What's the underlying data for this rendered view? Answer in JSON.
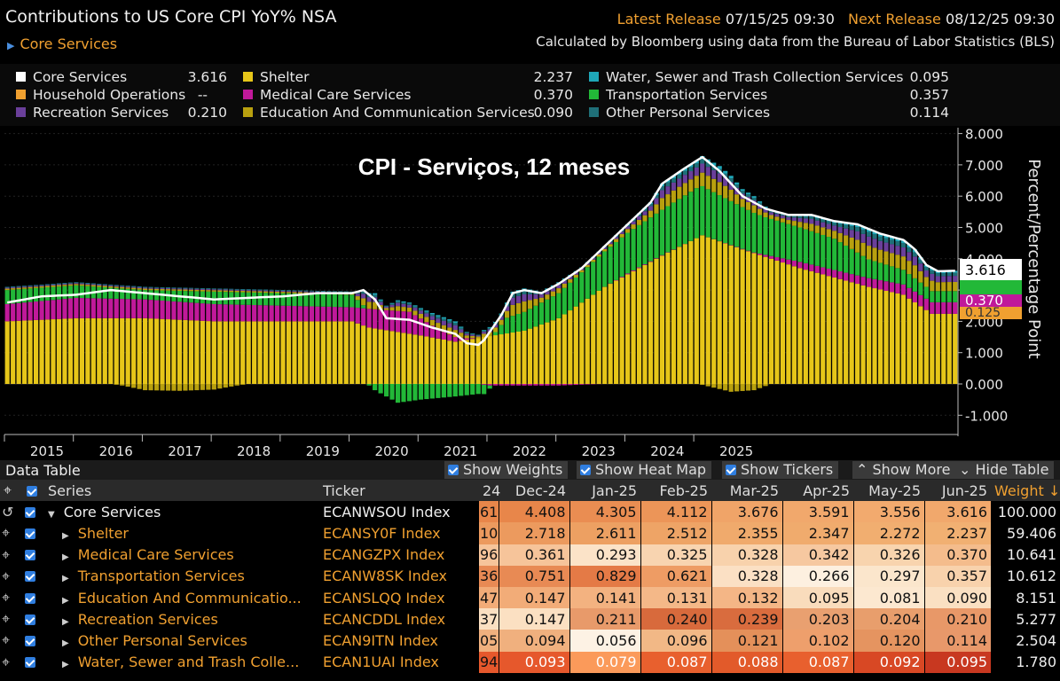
{
  "header": {
    "title": "Contributions to US Core CPI YoY% NSA",
    "subtitle": "Core Services",
    "latest_label": "Latest Release",
    "latest_value": "07/15/25 09:30",
    "next_label": "Next Release",
    "next_value": "08/12/25 09:30",
    "note": "Calculated by Bloomberg using data from the Bureau of Labor Statistics (BLS)"
  },
  "legend": [
    {
      "label": "Core Services",
      "value": "3.616",
      "color": "#ffffff"
    },
    {
      "label": "Household Operations",
      "value": "--",
      "color": "#f0a030"
    },
    {
      "label": "Recreation Services",
      "value": "0.210",
      "color": "#6a3f9a"
    },
    {
      "label": "Shelter",
      "value": "2.237",
      "color": "#e6c619"
    },
    {
      "label": "Medical Care Services",
      "value": "0.370",
      "color": "#c0199a"
    },
    {
      "label": "Education And Communication Services",
      "value": "0.090",
      "color": "#b8a00f"
    },
    {
      "label": "Water, Sewer and Trash Collection Services",
      "value": "0.095",
      "color": "#1fa7b8"
    },
    {
      "label": "Transportation Services",
      "value": "0.357",
      "color": "#22b838"
    },
    {
      "label": "Other Personal Services",
      "value": "0.114",
      "color": "#1f6f78"
    }
  ],
  "chart_data": {
    "type": "bar",
    "title": "CPI - Serviços, 12 meses",
    "ylabel": "Percent/Percentage Point",
    "ylim": [
      -1.0,
      8.0
    ],
    "yticks": [
      "8.000",
      "7.000",
      "6.000",
      "5.000",
      "4.000",
      "3.000",
      "2.000",
      "1.000",
      "0.000",
      "-1.000"
    ],
    "xticks": [
      "2015",
      "2016",
      "2017",
      "2018",
      "2019",
      "2020",
      "2021",
      "2022",
      "2023",
      "2024",
      "2025"
    ],
    "x_start": "2015-01",
    "annotations": [
      {
        "value": "3.616",
        "color": "#ffffff"
      },
      {
        "value": "0.370",
        "color": "#c0199a"
      },
      {
        "value": "0.125",
        "color": "#f0a030"
      }
    ],
    "anchors": {
      "shelter": [
        [
          0,
          2.0
        ],
        [
          12,
          2.1
        ],
        [
          24,
          2.1
        ],
        [
          36,
          2.0
        ],
        [
          48,
          2.0
        ],
        [
          60,
          2.0
        ],
        [
          63,
          1.8
        ],
        [
          72,
          1.55
        ],
        [
          78,
          1.35
        ],
        [
          83,
          1.5
        ],
        [
          90,
          1.7
        ],
        [
          96,
          2.1
        ],
        [
          104,
          3.1
        ],
        [
          114,
          4.1
        ],
        [
          121,
          4.75
        ],
        [
          128,
          4.3
        ],
        [
          138,
          3.7
        ],
        [
          150,
          3.1
        ],
        [
          156,
          2.85
        ],
        [
          161,
          2.24
        ],
        [
          165,
          2.24
        ]
      ],
      "medical": [
        [
          0,
          0.55
        ],
        [
          12,
          0.65
        ],
        [
          24,
          0.6
        ],
        [
          36,
          0.55
        ],
        [
          48,
          0.5
        ],
        [
          60,
          0.45
        ],
        [
          63,
          0.6
        ],
        [
          70,
          0.7
        ],
        [
          75,
          0.3
        ],
        [
          80,
          0.05
        ],
        [
          84,
          -0.05
        ],
        [
          96,
          -0.05
        ],
        [
          108,
          0.03
        ],
        [
          120,
          0.0
        ],
        [
          130,
          0.02
        ],
        [
          138,
          0.2
        ],
        [
          150,
          0.28
        ],
        [
          161,
          0.37
        ],
        [
          165,
          0.37
        ]
      ],
      "transport": [
        [
          0,
          0.45
        ],
        [
          12,
          0.4
        ],
        [
          24,
          0.3
        ],
        [
          36,
          0.4
        ],
        [
          48,
          0.4
        ],
        [
          60,
          0.4
        ],
        [
          64,
          -0.2
        ],
        [
          68,
          -0.6
        ],
        [
          72,
          -0.5
        ],
        [
          78,
          -0.4
        ],
        [
          83,
          -0.3
        ],
        [
          87,
          0.5
        ],
        [
          96,
          0.8
        ],
        [
          108,
          1.3
        ],
        [
          120,
          1.6
        ],
        [
          126,
          1.4
        ],
        [
          132,
          1.2
        ],
        [
          144,
          1.0
        ],
        [
          150,
          0.6
        ],
        [
          161,
          0.357
        ],
        [
          165,
          0.357
        ]
      ],
      "other": [
        [
          0,
          0.22
        ],
        [
          36,
          0.2
        ],
        [
          60,
          0.2
        ],
        [
          72,
          0.18
        ],
        [
          84,
          0.2
        ],
        [
          108,
          0.28
        ],
        [
          120,
          0.33
        ],
        [
          144,
          0.3
        ],
        [
          165,
          0.26
        ]
      ],
      "neg": [
        [
          0,
          0
        ],
        [
          18,
          0
        ],
        [
          20,
          -0.05
        ],
        [
          24,
          -0.2
        ],
        [
          30,
          -0.22
        ],
        [
          36,
          -0.18
        ],
        [
          40,
          -0.05
        ],
        [
          42,
          0
        ],
        [
          120,
          0
        ],
        [
          121,
          -0.03
        ],
        [
          126,
          -0.25
        ],
        [
          130,
          -0.2
        ],
        [
          133,
          0
        ],
        [
          165,
          0
        ]
      ],
      "total": [
        [
          0,
          2.6
        ],
        [
          6,
          2.8
        ],
        [
          12,
          2.85
        ],
        [
          18,
          3.0
        ],
        [
          24,
          2.9
        ],
        [
          30,
          2.8
        ],
        [
          36,
          2.7
        ],
        [
          42,
          2.75
        ],
        [
          48,
          2.8
        ],
        [
          54,
          2.9
        ],
        [
          60,
          2.9
        ],
        [
          62,
          3.0
        ],
        [
          64,
          2.7
        ],
        [
          66,
          2.1
        ],
        [
          70,
          2.05
        ],
        [
          74,
          1.8
        ],
        [
          78,
          1.6
        ],
        [
          80,
          1.3
        ],
        [
          82,
          1.25
        ],
        [
          83,
          1.4
        ],
        [
          86,
          2.2
        ],
        [
          88,
          2.9
        ],
        [
          90,
          3.0
        ],
        [
          93,
          2.9
        ],
        [
          96,
          3.2
        ],
        [
          100,
          3.7
        ],
        [
          104,
          4.4
        ],
        [
          108,
          5.1
        ],
        [
          112,
          5.8
        ],
        [
          114,
          6.4
        ],
        [
          118,
          6.9
        ],
        [
          121,
          7.25
        ],
        [
          124,
          6.8
        ],
        [
          128,
          6.0
        ],
        [
          132,
          5.6
        ],
        [
          136,
          5.4
        ],
        [
          140,
          5.4
        ],
        [
          144,
          5.2
        ],
        [
          148,
          5.1
        ],
        [
          152,
          4.8
        ],
        [
          156,
          4.6
        ],
        [
          158,
          4.3
        ],
        [
          160,
          3.8
        ],
        [
          162,
          3.6
        ],
        [
          165,
          3.616
        ]
      ]
    }
  },
  "data_table": {
    "title": "Data Table",
    "buttons": [
      "Show Weights",
      "Show Heat Map",
      "Show Tickers",
      "Show More",
      "Hide Table"
    ],
    "columns": [
      "Series",
      "Ticker",
      "24",
      "Dec-24",
      "Jan-25",
      "Feb-25",
      "Mar-25",
      "Apr-25",
      "May-25",
      "Jun-25",
      "Weight"
    ],
    "rows": [
      {
        "name": "Core Services",
        "ticker": "ECANWSOU Index",
        "p": "61",
        "v": [
          "4.408",
          "4.305",
          "4.112",
          "3.676",
          "3.591",
          "3.556",
          "3.616"
        ],
        "w": "100.000"
      },
      {
        "name": "Shelter",
        "ticker": "ECANSY0F Index",
        "p": "10",
        "v": [
          "2.718",
          "2.611",
          "2.512",
          "2.355",
          "2.347",
          "2.272",
          "2.237"
        ],
        "w": "59.406"
      },
      {
        "name": "Medical Care Services",
        "ticker": "ECANGZPX Index",
        "p": "96",
        "v": [
          "0.361",
          "0.293",
          "0.325",
          "0.328",
          "0.342",
          "0.326",
          "0.370"
        ],
        "w": "10.641"
      },
      {
        "name": "Transportation Services",
        "ticker": "ECANW8SK Index",
        "p": "36",
        "v": [
          "0.751",
          "0.829",
          "0.621",
          "0.328",
          "0.266",
          "0.297",
          "0.357"
        ],
        "w": "10.612"
      },
      {
        "name": "Education And Communicatio...",
        "ticker": "ECANSLQQ Index",
        "p": "47",
        "v": [
          "0.147",
          "0.141",
          "0.131",
          "0.132",
          "0.095",
          "0.081",
          "0.090"
        ],
        "w": "8.151"
      },
      {
        "name": "Recreation Services",
        "ticker": "ECANCDDL Index",
        "p": "37",
        "v": [
          "0.147",
          "0.211",
          "0.240",
          "0.239",
          "0.203",
          "0.204",
          "0.210"
        ],
        "w": "5.277"
      },
      {
        "name": "Other Personal Services",
        "ticker": "ECAN9ITN Index",
        "p": "05",
        "v": [
          "0.094",
          "0.056",
          "0.096",
          "0.121",
          "0.102",
          "0.120",
          "0.114"
        ],
        "w": "2.504"
      },
      {
        "name": "Water, Sewer and Trash Colle...",
        "ticker": "ECAN1UAI Index",
        "p": "94",
        "v": [
          "0.093",
          "0.079",
          "0.087",
          "0.088",
          "0.087",
          "0.092",
          "0.095"
        ],
        "w": "1.780"
      }
    ],
    "heat": [
      [
        "#e8864a",
        "#ea8d52",
        "#ec9558",
        "#f0a468",
        "#f1a86c",
        "#f2aa6e",
        "#f1a86c"
      ],
      [
        "#ec9a5e",
        "#eda062",
        "#eea466",
        "#f0aa6c",
        "#f0ab6d",
        "#f1ae70",
        "#f1b072"
      ],
      [
        "#f6c49a",
        "#fbe3c8",
        "#f8d4b0",
        "#f8d2ac",
        "#f6c8a0",
        "#f8d4ae",
        "#f4bc8c"
      ],
      [
        "#e88a54",
        "#e47a46",
        "#ee9c64",
        "#fbe0c4",
        "#fdf0e0",
        "#fbe6cc",
        "#f8d2ac"
      ],
      [
        "#f2ac78",
        "#f3b280",
        "#f4b888",
        "#f4b686",
        "#f9dcbc",
        "#fce8d0",
        "#fae0c2"
      ],
      [
        "#fbe0c2",
        "#e89a6a",
        "#d86a3c",
        "#d96c3e",
        "#e9a070",
        "#e89e6c",
        "#e89868"
      ],
      [
        "#f0b07e",
        "#fdf2e4",
        "#f2b886",
        "#e4905a",
        "#ee9f6c",
        "#e59460",
        "#e8986a"
      ],
      [
        "#e6582c",
        "#fb9a5a",
        "#e8602e",
        "#e25a2a",
        "#e8602e",
        "#d84824",
        "#c83820"
      ]
    ]
  }
}
